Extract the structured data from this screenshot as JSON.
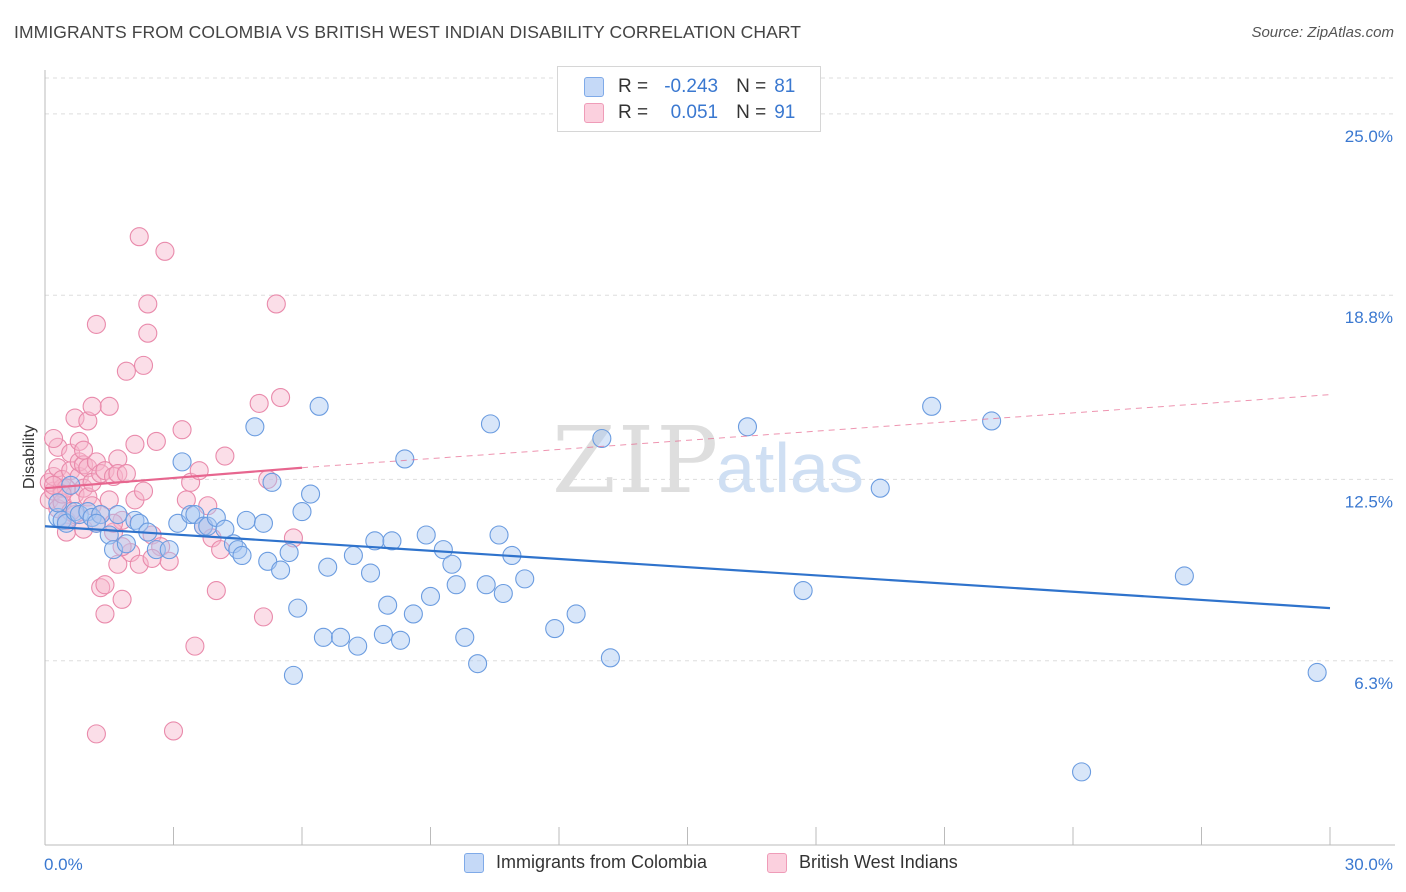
{
  "title": "IMMIGRANTS FROM COLOMBIA VS BRITISH WEST INDIAN DISABILITY CORRELATION CHART",
  "source": "Source: ZipAtlas.com",
  "watermark": {
    "zip": "ZIP",
    "atlas": "atlas"
  },
  "legend": {
    "row1": {
      "r_label": "R =",
      "r_value": "-0.243",
      "n_label": "N =",
      "n_value": "81"
    },
    "row2": {
      "r_label": "R =",
      "r_value": "0.051",
      "n_label": "N =",
      "n_value": "91"
    }
  },
  "colors": {
    "blue_fill": "#a9c7f2",
    "blue_stroke": "#6b9ce0",
    "blue_line": "#2f73cc",
    "pink_fill": "#f6b6cb",
    "pink_stroke": "#e98aab",
    "pink_line": "#e7668f",
    "axis_label": "#3a78d0",
    "grid": "#dddddd"
  },
  "chart_data": {
    "type": "scatter",
    "title": "IMMIGRANTS FROM COLOMBIA VS BRITISH WEST INDIAN DISABILITY CORRELATION CHART",
    "xlabel": "",
    "ylabel": "Disability",
    "xlim": [
      0,
      30
    ],
    "ylim": [
      0,
      26.5
    ],
    "x_tick_labels": [
      "0.0%",
      "30.0%"
    ],
    "y_ticks": [
      6.3,
      12.5,
      18.8,
      25.0
    ],
    "y_tick_labels": [
      "6.3%",
      "12.5%",
      "18.8%",
      "25.0%"
    ],
    "series": [
      {
        "name": "Immigrants from Colombia",
        "color": "blue",
        "r": -0.243,
        "n": 81,
        "trend": {
          "x": [
            0,
            30
          ],
          "y": [
            10.9,
            8.1
          ]
        },
        "points": [
          [
            0.3,
            11.2
          ],
          [
            0.4,
            11.1
          ],
          [
            0.5,
            11.0
          ],
          [
            0.7,
            11.4
          ],
          [
            0.8,
            11.3
          ],
          [
            1.0,
            11.4
          ],
          [
            1.1,
            11.2
          ],
          [
            1.3,
            11.3
          ],
          [
            1.5,
            10.6
          ],
          [
            1.6,
            10.1
          ],
          [
            1.7,
            11.3
          ],
          [
            1.9,
            10.3
          ],
          [
            2.1,
            11.1
          ],
          [
            2.2,
            11.0
          ],
          [
            2.4,
            10.7
          ],
          [
            2.6,
            10.1
          ],
          [
            2.9,
            10.1
          ],
          [
            3.1,
            11.0
          ],
          [
            3.2,
            13.1
          ],
          [
            3.4,
            11.3
          ],
          [
            3.5,
            11.3
          ],
          [
            3.7,
            10.9
          ],
          [
            3.8,
            10.9
          ],
          [
            4.0,
            11.2
          ],
          [
            4.2,
            10.8
          ],
          [
            4.4,
            10.3
          ],
          [
            4.5,
            10.1
          ],
          [
            4.6,
            9.9
          ],
          [
            4.7,
            11.1
          ],
          [
            4.9,
            14.3
          ],
          [
            5.1,
            11.0
          ],
          [
            5.2,
            9.7
          ],
          [
            5.3,
            12.4
          ],
          [
            5.5,
            9.4
          ],
          [
            5.7,
            10.0
          ],
          [
            5.8,
            5.8
          ],
          [
            5.9,
            8.1
          ],
          [
            6.0,
            11.4
          ],
          [
            6.2,
            12.0
          ],
          [
            6.4,
            15.0
          ],
          [
            6.5,
            7.1
          ],
          [
            6.6,
            9.5
          ],
          [
            6.9,
            7.1
          ],
          [
            7.2,
            9.9
          ],
          [
            7.3,
            6.8
          ],
          [
            7.6,
            9.3
          ],
          [
            7.7,
            10.4
          ],
          [
            7.9,
            7.2
          ],
          [
            8.0,
            8.2
          ],
          [
            8.1,
            10.4
          ],
          [
            8.3,
            7.0
          ],
          [
            8.4,
            13.2
          ],
          [
            8.6,
            7.9
          ],
          [
            8.9,
            10.6
          ],
          [
            9.0,
            8.5
          ],
          [
            9.3,
            10.1
          ],
          [
            9.5,
            9.6
          ],
          [
            9.6,
            8.9
          ],
          [
            9.8,
            7.1
          ],
          [
            10.1,
            6.2
          ],
          [
            10.3,
            8.9
          ],
          [
            10.4,
            14.4
          ],
          [
            10.6,
            10.6
          ],
          [
            10.7,
            8.6
          ],
          [
            10.9,
            9.9
          ],
          [
            11.2,
            9.1
          ],
          [
            11.9,
            7.4
          ],
          [
            12.4,
            7.9
          ],
          [
            13.0,
            13.9
          ],
          [
            13.2,
            6.4
          ],
          [
            16.4,
            14.3
          ],
          [
            17.7,
            8.7
          ],
          [
            19.5,
            12.2
          ],
          [
            20.7,
            15.0
          ],
          [
            22.1,
            14.5
          ],
          [
            24.2,
            2.5
          ],
          [
            26.6,
            9.2
          ],
          [
            29.7,
            5.9
          ],
          [
            0.3,
            11.7
          ],
          [
            0.6,
            12.3
          ],
          [
            1.2,
            11.0
          ]
        ]
      },
      {
        "name": "British West Indians",
        "color": "pink",
        "r": 0.051,
        "n": 91,
        "trend": {
          "x": [
            0,
            6
          ],
          "y": [
            12.2,
            12.9
          ],
          "dashed_x": [
            6,
            30
          ],
          "dashed_y": [
            12.9,
            15.4
          ]
        },
        "points": [
          [
            0.1,
            12.4
          ],
          [
            0.1,
            11.8
          ],
          [
            0.2,
            12.1
          ],
          [
            0.2,
            12.6
          ],
          [
            0.3,
            11.5
          ],
          [
            0.3,
            12.9
          ],
          [
            0.3,
            13.6
          ],
          [
            0.4,
            12.2
          ],
          [
            0.4,
            11.7
          ],
          [
            0.4,
            12.5
          ],
          [
            0.5,
            10.7
          ],
          [
            0.5,
            11.1
          ],
          [
            0.6,
            12.8
          ],
          [
            0.6,
            13.4
          ],
          [
            0.7,
            12.0
          ],
          [
            0.7,
            14.6
          ],
          [
            0.7,
            11.3
          ],
          [
            0.8,
            12.6
          ],
          [
            0.8,
            13.1
          ],
          [
            0.8,
            13.8
          ],
          [
            0.9,
            10.8
          ],
          [
            0.9,
            12.2
          ],
          [
            0.9,
            13.0
          ],
          [
            1.0,
            11.9
          ],
          [
            1.0,
            12.9
          ],
          [
            1.0,
            14.5
          ],
          [
            1.1,
            11.6
          ],
          [
            1.1,
            12.4
          ],
          [
            1.2,
            11.0
          ],
          [
            1.2,
            13.1
          ],
          [
            1.3,
            12.7
          ],
          [
            1.3,
            8.8
          ],
          [
            1.2,
            17.8
          ],
          [
            1.3,
            11.3
          ],
          [
            1.4,
            12.8
          ],
          [
            1.4,
            8.9
          ],
          [
            1.4,
            7.9
          ],
          [
            1.5,
            15.0
          ],
          [
            1.5,
            11.8
          ],
          [
            1.6,
            10.7
          ],
          [
            1.6,
            12.6
          ],
          [
            1.7,
            13.2
          ],
          [
            1.7,
            12.7
          ],
          [
            1.7,
            9.6
          ],
          [
            1.8,
            11.1
          ],
          [
            1.8,
            8.4
          ],
          [
            1.9,
            12.7
          ],
          [
            1.9,
            16.2
          ],
          [
            1.2,
            3.8
          ],
          [
            2.0,
            10.0
          ],
          [
            2.1,
            13.7
          ],
          [
            2.1,
            11.8
          ],
          [
            2.2,
            9.6
          ],
          [
            2.2,
            20.8
          ],
          [
            2.3,
            16.4
          ],
          [
            2.3,
            12.1
          ],
          [
            2.4,
            18.5
          ],
          [
            2.4,
            17.5
          ],
          [
            2.5,
            10.6
          ],
          [
            2.6,
            13.8
          ],
          [
            2.7,
            10.2
          ],
          [
            2.8,
            20.3
          ],
          [
            2.9,
            9.7
          ],
          [
            3.0,
            3.9
          ],
          [
            3.2,
            14.2
          ],
          [
            3.3,
            11.8
          ],
          [
            3.4,
            12.4
          ],
          [
            3.5,
            6.8
          ],
          [
            3.6,
            12.8
          ],
          [
            3.7,
            10.9
          ],
          [
            3.8,
            11.6
          ],
          [
            3.9,
            10.5
          ],
          [
            4.0,
            8.7
          ],
          [
            4.1,
            10.1
          ],
          [
            4.2,
            13.3
          ],
          [
            5.0,
            15.1
          ],
          [
            5.1,
            7.8
          ],
          [
            5.2,
            12.5
          ],
          [
            5.4,
            18.5
          ],
          [
            5.5,
            15.3
          ],
          [
            5.8,
            10.5
          ],
          [
            0.2,
            13.9
          ],
          [
            0.5,
            12.2
          ],
          [
            0.6,
            11.4
          ],
          [
            0.9,
            13.5
          ],
          [
            1.1,
            15.0
          ],
          [
            1.6,
            11.0
          ],
          [
            1.8,
            10.2
          ],
          [
            2.5,
            9.8
          ],
          [
            0.4,
            12.0
          ],
          [
            0.2,
            12.3
          ]
        ]
      }
    ],
    "legend_position": "top-center"
  }
}
